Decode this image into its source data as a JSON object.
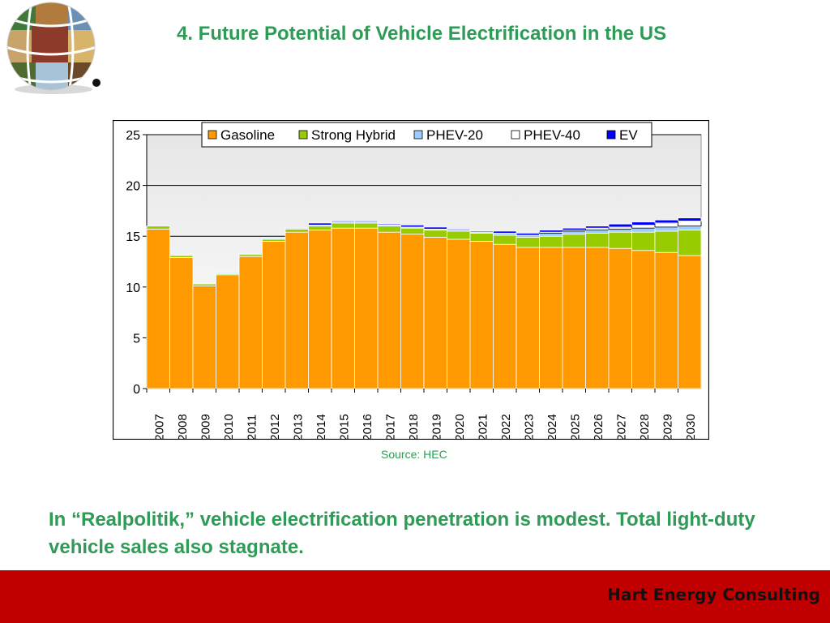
{
  "slide": {
    "title": "4. Future Potential of Vehicle Electrification in the US",
    "source": "Source: HEC",
    "caption": "In “Realpolitik,” vehicle electrification penetration is modest. Total light-duty vehicle sales also stagnate.",
    "footer": "Hart Energy Consulting",
    "logo_icon": "globe-collage-icon"
  },
  "colors": {
    "title_green": "#2e9b56",
    "footer_red": "#c00000"
  },
  "chart_data": {
    "type": "bar",
    "stacked": true,
    "categories": [
      "2007",
      "2008",
      "2009",
      "2010",
      "2011",
      "2012",
      "2013",
      "2014",
      "2015",
      "2016",
      "2017",
      "2018",
      "2019",
      "2020",
      "2021",
      "2022",
      "2023",
      "2024",
      "2025",
      "2026",
      "2027",
      "2028",
      "2029",
      "2030"
    ],
    "series": [
      {
        "name": "Gasoline",
        "color": "#ff9900",
        "values": [
          15.7,
          12.9,
          10.1,
          11.2,
          13.0,
          14.5,
          15.4,
          15.6,
          15.8,
          15.8,
          15.4,
          15.2,
          14.9,
          14.7,
          14.5,
          14.2,
          13.9,
          13.9,
          13.9,
          13.9,
          13.8,
          13.6,
          13.4,
          13.1
        ]
      },
      {
        "name": "Strong Hybrid",
        "color": "#99cc00",
        "values": [
          0.3,
          0.2,
          0.2,
          0.1,
          0.2,
          0.2,
          0.3,
          0.4,
          0.5,
          0.5,
          0.6,
          0.6,
          0.7,
          0.8,
          0.8,
          0.9,
          1.0,
          1.1,
          1.3,
          1.4,
          1.6,
          1.8,
          2.1,
          2.5
        ]
      },
      {
        "name": "PHEV-20",
        "color": "#99ccff",
        "values": [
          0,
          0,
          0,
          0.1,
          0.1,
          0.1,
          0.1,
          0.1,
          0.1,
          0.1,
          0.1,
          0.1,
          0.1,
          0.1,
          0.1,
          0.2,
          0.2,
          0.3,
          0.3,
          0.3,
          0.3,
          0.4,
          0.4,
          0.4
        ]
      },
      {
        "name": "PHEV-40",
        "color": "#ffffff",
        "values": [
          0,
          0,
          0,
          0,
          0,
          0,
          0,
          0,
          0,
          0,
          0,
          0,
          0,
          0,
          0,
          0,
          0,
          0.1,
          0.1,
          0.2,
          0.2,
          0.3,
          0.4,
          0.5
        ]
      },
      {
        "name": "EV",
        "color": "#0000ff",
        "values": [
          0,
          0,
          0,
          0,
          0,
          0,
          0,
          0.2,
          0.1,
          0.1,
          0.1,
          0.2,
          0.2,
          0.1,
          0.1,
          0.2,
          0.2,
          0.2,
          0.2,
          0.2,
          0.3,
          0.3,
          0.3,
          0.3
        ]
      }
    ],
    "yticks": [
      0,
      5,
      10,
      15,
      20,
      25
    ],
    "ylim": [
      0,
      25
    ],
    "grid": true,
    "legend": "top"
  }
}
